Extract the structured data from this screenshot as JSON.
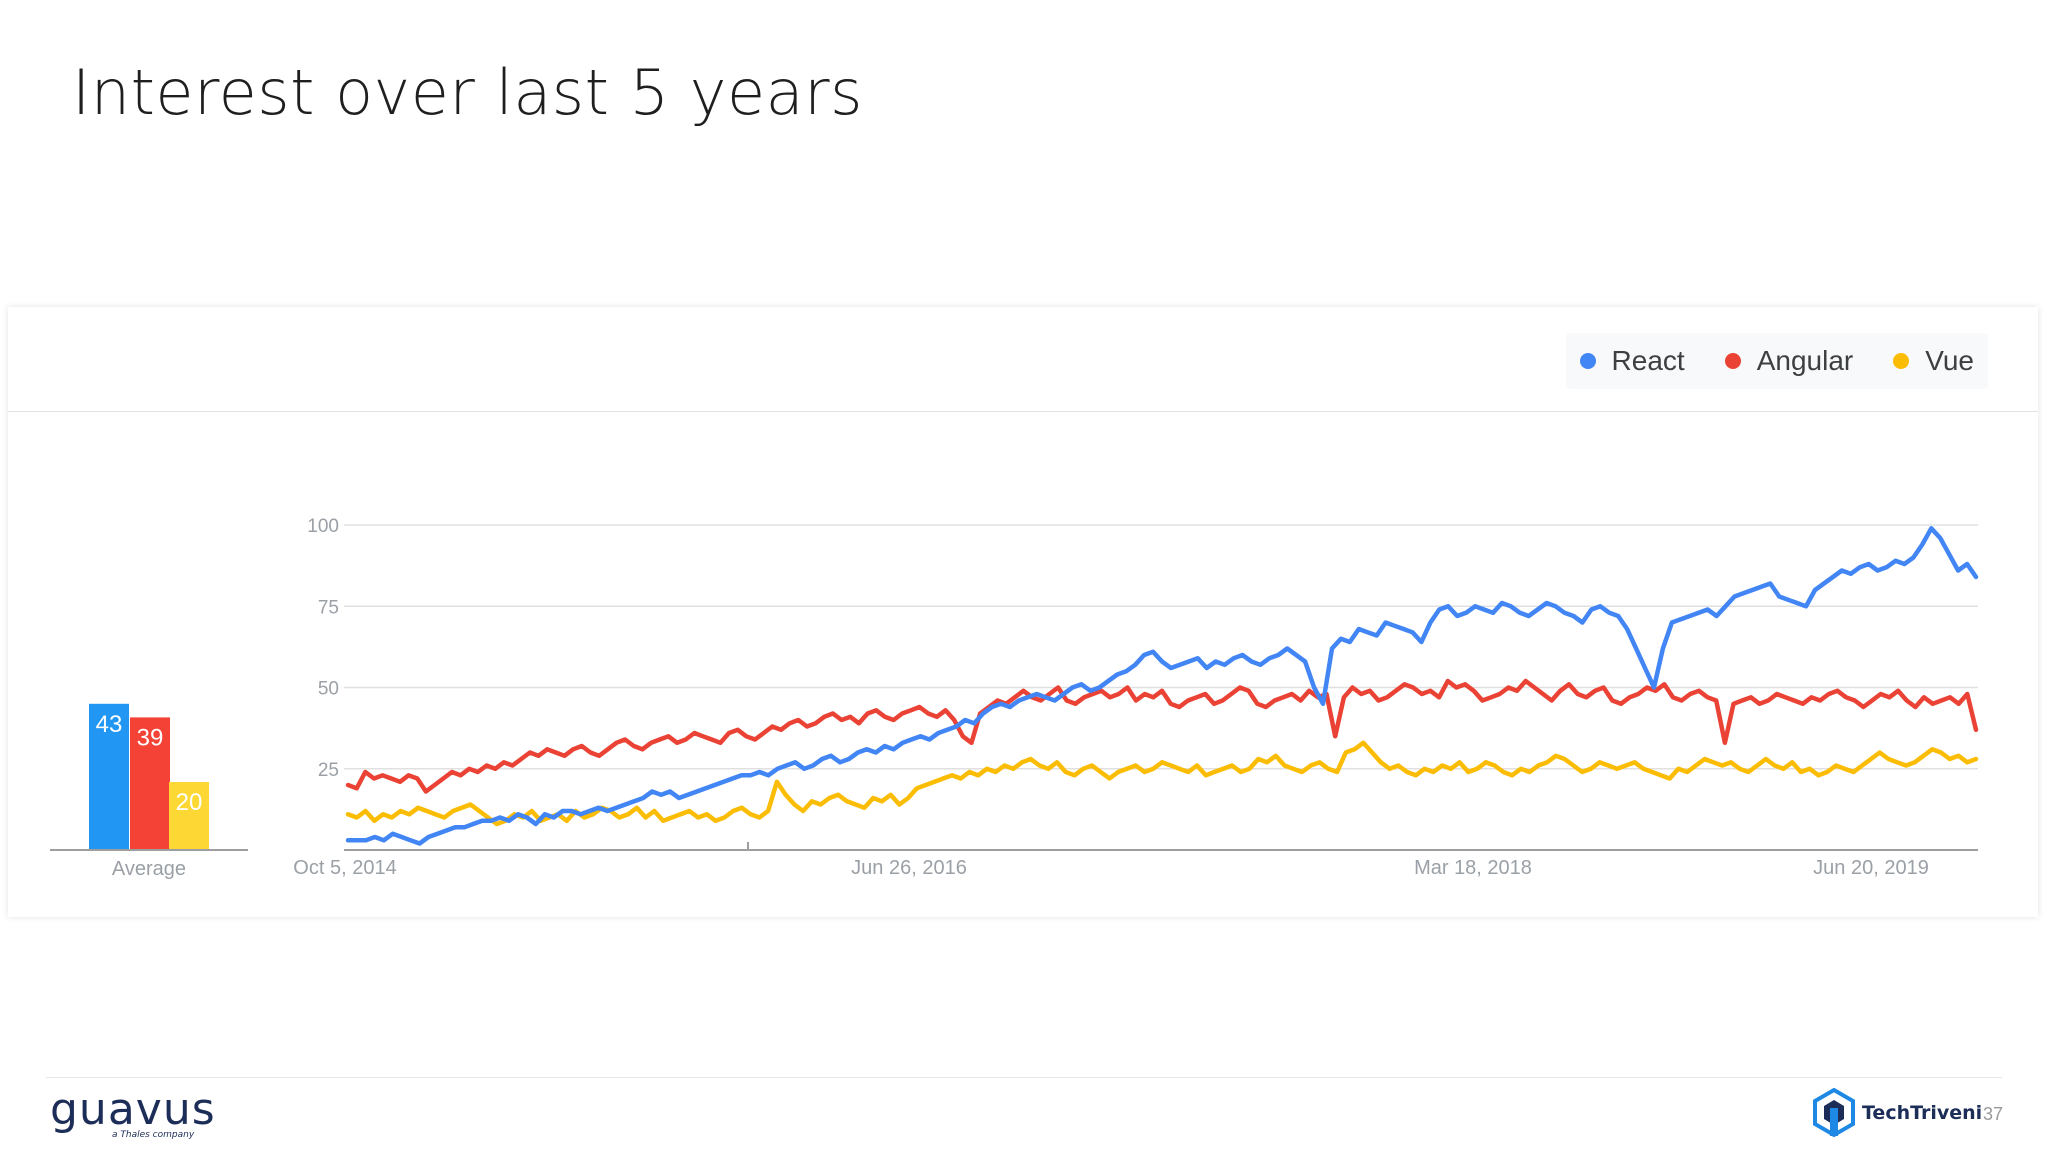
{
  "slide": {
    "title": "Interest over last 5 years",
    "page_number": "37"
  },
  "logos": {
    "left": {
      "name": "guavus",
      "tagline": "a Thales company"
    },
    "right": {
      "name": "TechTriveni"
    }
  },
  "colors": {
    "react": "#4285f4",
    "angular": "#ea4335",
    "vue": "#fbbc04",
    "avg_react": "#2196f3",
    "avg_angular": "#f44336",
    "avg_vue": "#fdd835"
  },
  "legend": [
    {
      "name": "React",
      "color": "#4285f4"
    },
    {
      "name": "Angular",
      "color": "#ea4335"
    },
    {
      "name": "Vue",
      "color": "#fbbc04"
    }
  ],
  "chart_data": [
    {
      "type": "bar",
      "xlabel": "Average",
      "categories": [
        "React",
        "Angular",
        "Vue"
      ],
      "values": [
        43,
        39,
        20
      ],
      "data_labels": [
        "43",
        "39",
        "20"
      ]
    },
    {
      "type": "line",
      "x_tick_labels": [
        "Oct 5, 2014",
        "Jun 26, 2016",
        "Mar 18, 2018",
        "Jun 20, 2019"
      ],
      "x_range": [
        "2014-10-05",
        "2019-09-29"
      ],
      "y_ticks": [
        "25",
        "50",
        "75",
        "100"
      ],
      "ylim": [
        0,
        100
      ],
      "grid": true,
      "legend_position": "top-right",
      "sample_interval": "2 weeks",
      "series": [
        {
          "name": "React",
          "values": [
            3,
            3,
            3,
            4,
            3,
            5,
            4,
            3,
            2,
            4,
            5,
            6,
            7,
            7,
            8,
            9,
            9,
            10,
            9,
            11,
            10,
            8,
            11,
            10,
            12,
            12,
            11,
            12,
            13,
            12,
            13,
            14,
            15,
            16,
            18,
            17,
            18,
            16,
            17,
            18,
            19,
            20,
            21,
            22,
            23,
            23,
            24,
            23,
            25,
            26,
            27,
            25,
            26,
            28,
            29,
            27,
            28,
            30,
            31,
            30,
            32,
            31,
            33,
            34,
            35,
            34,
            36,
            37,
            38,
            40,
            39,
            42,
            44,
            45,
            44,
            46,
            47,
            48,
            47,
            46,
            48,
            50,
            51,
            49,
            50,
            52,
            54,
            55,
            57,
            60,
            61,
            58,
            56,
            57,
            58,
            59,
            56,
            58,
            57,
            59,
            60,
            58,
            57,
            59,
            60,
            62,
            60,
            58,
            50,
            45,
            62,
            65,
            64,
            68,
            67,
            66,
            70,
            69,
            68,
            67,
            64,
            70,
            74,
            75,
            72,
            73,
            75,
            74,
            73,
            76,
            75,
            73,
            72,
            74,
            76,
            75,
            73,
            72,
            70,
            74,
            75,
            73,
            72,
            68,
            62,
            56,
            50,
            62,
            70,
            71,
            72,
            73,
            74,
            72,
            75,
            78,
            79,
            80,
            81,
            82,
            78,
            77,
            76,
            75,
            80,
            82,
            84,
            86,
            85,
            87,
            88,
            86,
            87,
            89,
            88,
            90,
            94,
            99,
            96,
            91,
            86,
            88,
            84
          ]
        },
        {
          "name": "Angular",
          "values": [
            20,
            19,
            24,
            22,
            23,
            22,
            21,
            23,
            22,
            18,
            20,
            22,
            24,
            23,
            25,
            24,
            26,
            25,
            27,
            26,
            28,
            30,
            29,
            31,
            30,
            29,
            31,
            32,
            30,
            29,
            31,
            33,
            34,
            32,
            31,
            33,
            34,
            35,
            33,
            34,
            36,
            35,
            34,
            33,
            36,
            37,
            35,
            34,
            36,
            38,
            37,
            39,
            40,
            38,
            39,
            41,
            42,
            40,
            41,
            39,
            42,
            43,
            41,
            40,
            42,
            43,
            44,
            42,
            41,
            43,
            40,
            35,
            33,
            42,
            44,
            46,
            45,
            47,
            49,
            47,
            46,
            48,
            50,
            46,
            45,
            47,
            48,
            49,
            47,
            48,
            50,
            46,
            48,
            47,
            49,
            45,
            44,
            46,
            47,
            48,
            45,
            46,
            48,
            50,
            49,
            45,
            44,
            46,
            47,
            48,
            46,
            49,
            47,
            48,
            35,
            47,
            50,
            48,
            49,
            46,
            47,
            49,
            51,
            50,
            48,
            49,
            47,
            52,
            50,
            51,
            49,
            46,
            47,
            48,
            50,
            49,
            52,
            50,
            48,
            46,
            49,
            51,
            48,
            47,
            49,
            50,
            46,
            45,
            47,
            48,
            50,
            49,
            51,
            47,
            46,
            48,
            49,
            47,
            46,
            33,
            45,
            46,
            47,
            45,
            46,
            48,
            47,
            46,
            45,
            47,
            46,
            48,
            49,
            47,
            46,
            44,
            46,
            48,
            47,
            49,
            46,
            44,
            47,
            45,
            46,
            47,
            45,
            48,
            37
          ]
        },
        {
          "name": "Vue",
          "values": [
            11,
            10,
            12,
            9,
            11,
            10,
            12,
            11,
            13,
            12,
            11,
            10,
            12,
            13,
            14,
            12,
            10,
            8,
            9,
            11,
            10,
            12,
            9,
            10,
            11,
            9,
            12,
            10,
            11,
            13,
            12,
            10,
            11,
            13,
            10,
            12,
            9,
            10,
            11,
            12,
            10,
            11,
            9,
            10,
            12,
            13,
            11,
            10,
            12,
            21,
            17,
            14,
            12,
            15,
            14,
            16,
            17,
            15,
            14,
            13,
            16,
            15,
            17,
            14,
            16,
            19,
            20,
            21,
            22,
            23,
            22,
            24,
            23,
            25,
            24,
            26,
            25,
            27,
            28,
            26,
            25,
            27,
            24,
            23,
            25,
            26,
            24,
            22,
            24,
            25,
            26,
            24,
            25,
            27,
            26,
            25,
            24,
            26,
            23,
            24,
            25,
            26,
            24,
            25,
            28,
            27,
            29,
            26,
            25,
            24,
            26,
            27,
            25,
            24,
            30,
            31,
            33,
            30,
            27,
            25,
            26,
            24,
            23,
            25,
            24,
            26,
            25,
            27,
            24,
            25,
            27,
            26,
            24,
            23,
            25,
            24,
            26,
            27,
            29,
            28,
            26,
            24,
            25,
            27,
            26,
            25,
            26,
            27,
            25,
            24,
            23,
            22,
            25,
            24,
            26,
            28,
            27,
            26,
            27,
            25,
            24,
            26,
            28,
            26,
            25,
            27,
            24,
            25,
            23,
            24,
            26,
            25,
            24,
            26,
            28,
            30,
            28,
            27,
            26,
            27,
            29,
            31,
            30,
            28,
            29,
            27,
            28
          ]
        }
      ]
    }
  ]
}
